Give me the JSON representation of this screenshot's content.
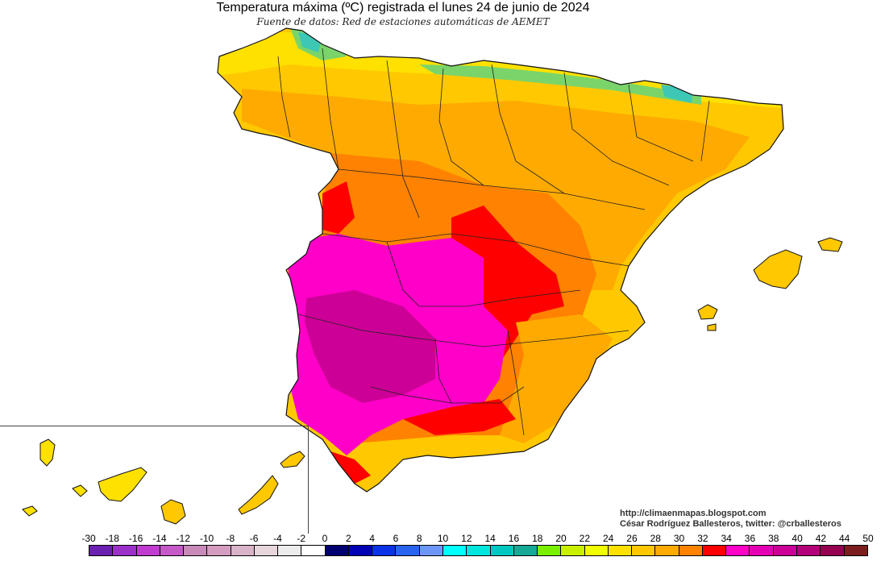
{
  "header": {
    "title": "Temperatura máxima (ºC) registrada el lunes 24 de junio de 2024",
    "subtitle": "Fuente de datos: Red de estaciones automáticas de AEMET"
  },
  "credits": {
    "url": "http://climaenmapas.blogspot.com",
    "author": "César Rodríguez Ballesteros, twitter: @crballesteros"
  },
  "legend": {
    "labels": [
      "-30",
      "-18",
      "-16",
      "-14",
      "-12",
      "-10",
      "-8",
      "-6",
      "-4",
      "-2",
      "0",
      "2",
      "4",
      "6",
      "8",
      "10",
      "12",
      "14",
      "16",
      "18",
      "20",
      "22",
      "24",
      "26",
      "28",
      "30",
      "32",
      "34",
      "36",
      "38",
      "40",
      "42",
      "44",
      "50"
    ],
    "colors": [
      "#6a1fb0",
      "#9b30c8",
      "#c03cd0",
      "#c659c8",
      "#c88ab8",
      "#d49cc0",
      "#d9b3c8",
      "#e6d6dc",
      "#ececec",
      "#ffffff",
      "#000070",
      "#0000b4",
      "#0a32e6",
      "#2864f0",
      "#6e96f8",
      "#00ffff",
      "#00e6dc",
      "#00c8c0",
      "#14aa96",
      "#78f000",
      "#c8f000",
      "#f0ff00",
      "#ffe100",
      "#ffc800",
      "#ffaa00",
      "#ff8200",
      "#ff0000",
      "#ff00c8",
      "#e600b4",
      "#cc0096",
      "#b40078",
      "#960050",
      "#7d1e1e"
    ]
  },
  "zones": {
    "cool_green": "#7ad46a",
    "cool_cyan": "#3cc8b4",
    "yellow": "#ffe100",
    "yellow_orange": "#ffc800",
    "orange": "#ffaa00",
    "deep_orange": "#ff8200",
    "red": "#ff0000",
    "magenta": "#ff00c8",
    "purple": "#cc0096"
  }
}
